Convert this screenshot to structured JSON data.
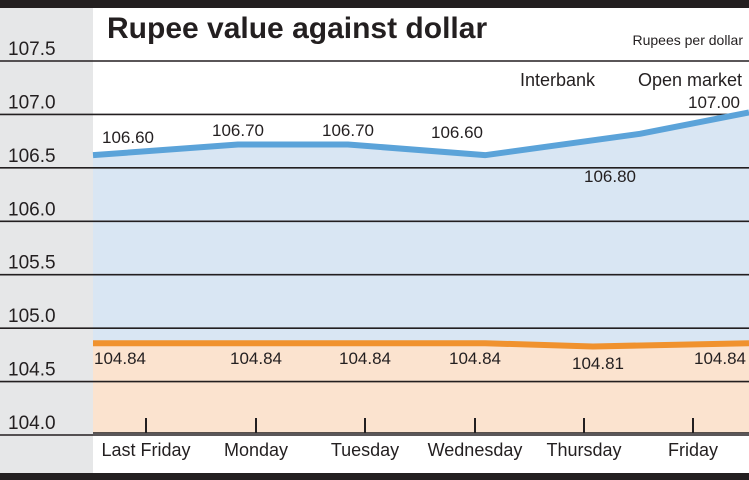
{
  "chart_data": {
    "type": "line",
    "title": "Rupee value against dollar",
    "unit_label": "Rupees per dollar",
    "categories": [
      "Last Friday",
      "Monday",
      "Tuesday",
      "Wednesday",
      "Thursday",
      "Friday"
    ],
    "yticks": [
      "107.5",
      "107.0",
      "106.5",
      "106.0",
      "105.5",
      "105.0",
      "104.5",
      "104.0"
    ],
    "ylim": [
      104.0,
      107.5
    ],
    "series": [
      {
        "name": "Open market",
        "values": [
          106.6,
          106.7,
          106.7,
          106.6,
          106.8,
          107.0
        ],
        "labels": [
          "106.60",
          "106.70",
          "106.70",
          "106.60",
          "106.80",
          "107.00"
        ],
        "color": "#5ba3d9",
        "fill": "#d9e6f3"
      },
      {
        "name": "Interbank",
        "values": [
          104.84,
          104.84,
          104.84,
          104.84,
          104.81,
          104.84
        ],
        "labels": [
          "104.84",
          "104.84",
          "104.84",
          "104.84",
          "104.81",
          "104.84"
        ],
        "color": "#f0922e",
        "fill": "#fbe3cf"
      }
    ],
    "legend": [
      "Interbank",
      "Open market"
    ],
    "grid": true
  }
}
